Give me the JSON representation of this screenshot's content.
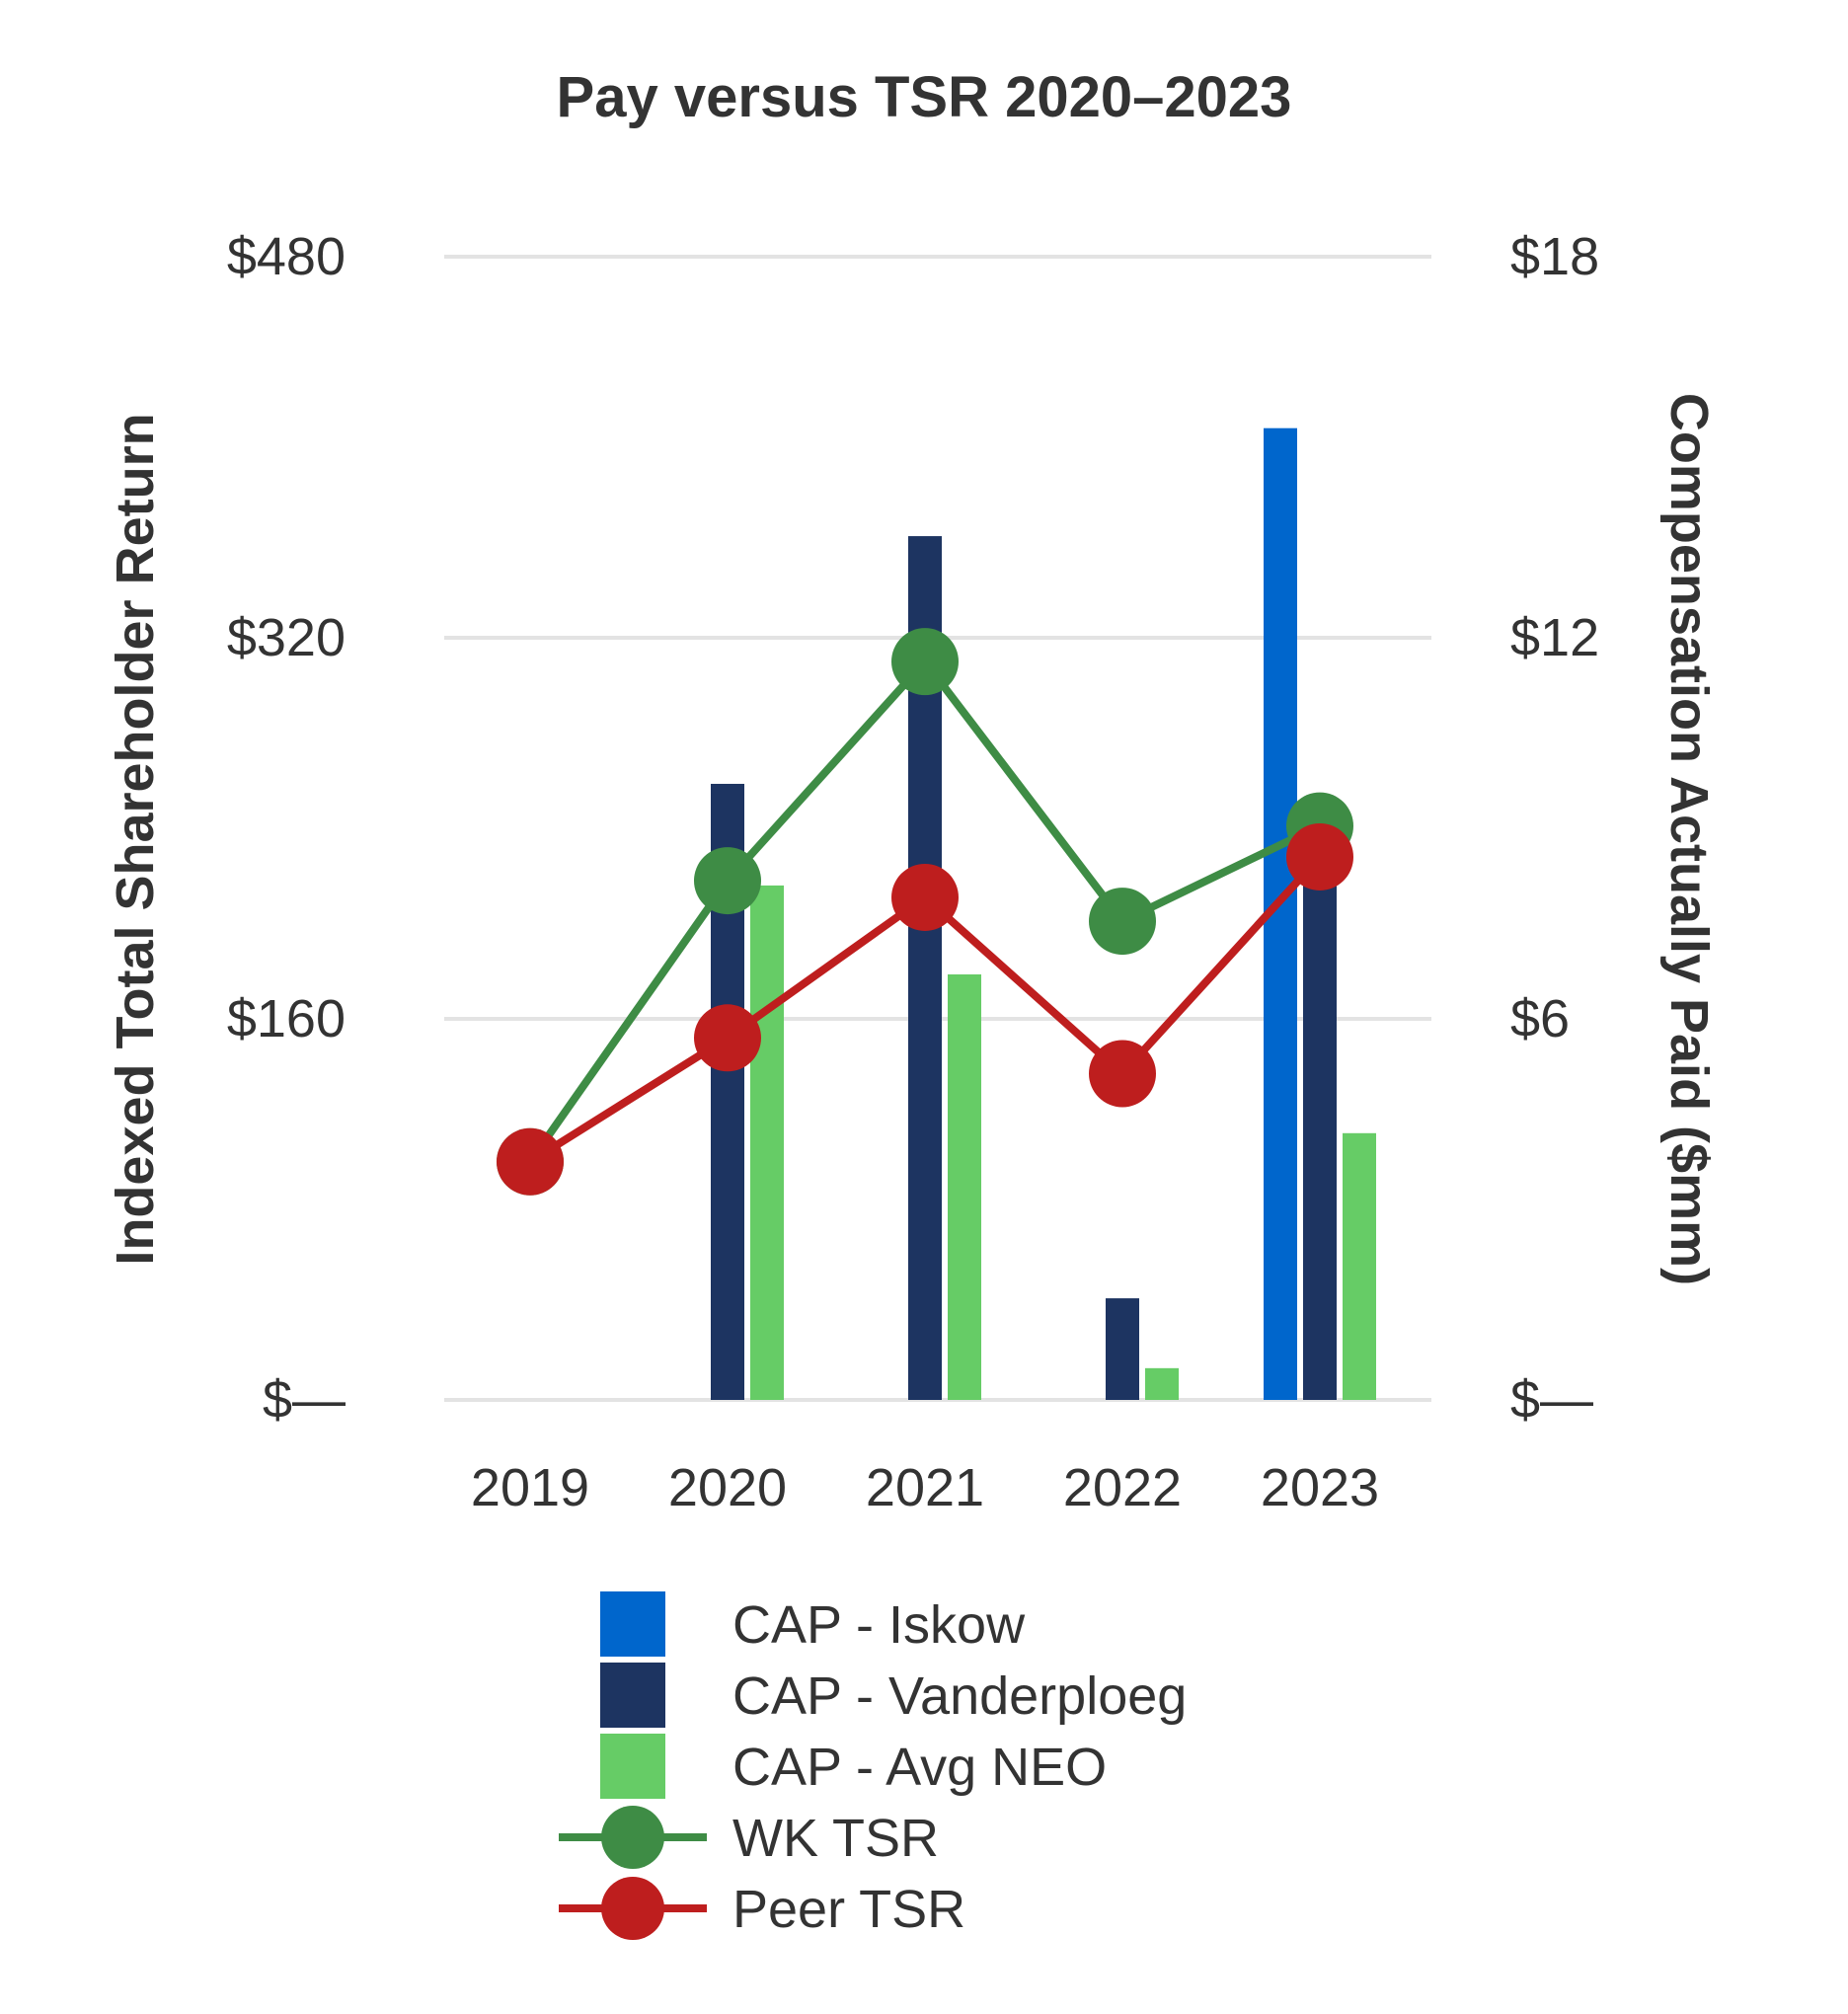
{
  "chart_data": {
    "type": "bar",
    "title": "Pay versus TSR 2020–2023",
    "categories": [
      "2019",
      "2020",
      "2021",
      "2022",
      "2023"
    ],
    "left_axis": {
      "label": "Indexed Total Shareholder Return",
      "range": [
        0,
        480
      ],
      "ticks": [
        0,
        160,
        320,
        480
      ],
      "tick_labels": [
        "$—",
        "$160",
        "$320",
        "$480"
      ]
    },
    "right_axis": {
      "label": "Compensation Actually Paid ($mm)",
      "range": [
        0,
        18
      ],
      "ticks": [
        0,
        6,
        12,
        18
      ],
      "tick_labels": [
        "$—",
        "$6",
        "$12",
        "$18"
      ]
    },
    "bar_series": [
      {
        "name": "CAP - Iskow",
        "axis": "right",
        "color": "#0066CC",
        "values": [
          null,
          null,
          null,
          null,
          15.3
        ]
      },
      {
        "name": "CAP - Vanderploeg",
        "axis": "right",
        "color": "#1D3461",
        "values": [
          null,
          9.7,
          13.6,
          1.6,
          8.6
        ]
      },
      {
        "name": "CAP - Avg NEO",
        "axis": "right",
        "color": "#66CC66",
        "values": [
          null,
          8.1,
          6.7,
          0.5,
          4.2
        ]
      }
    ],
    "line_series": [
      {
        "name": "WK TSR",
        "axis": "left",
        "color": "#3E8C45",
        "values": [
          100,
          218,
          310,
          201,
          241
        ]
      },
      {
        "name": "Peer TSR",
        "axis": "left",
        "color": "#BE1E1E",
        "values": [
          100,
          152,
          211,
          137,
          228
        ]
      }
    ],
    "legend": [
      "CAP - Iskow",
      "CAP - Vanderploeg",
      "CAP - Avg NEO",
      "WK TSR",
      "Peer TSR"
    ],
    "legend_position": "bottom",
    "grid": true
  }
}
